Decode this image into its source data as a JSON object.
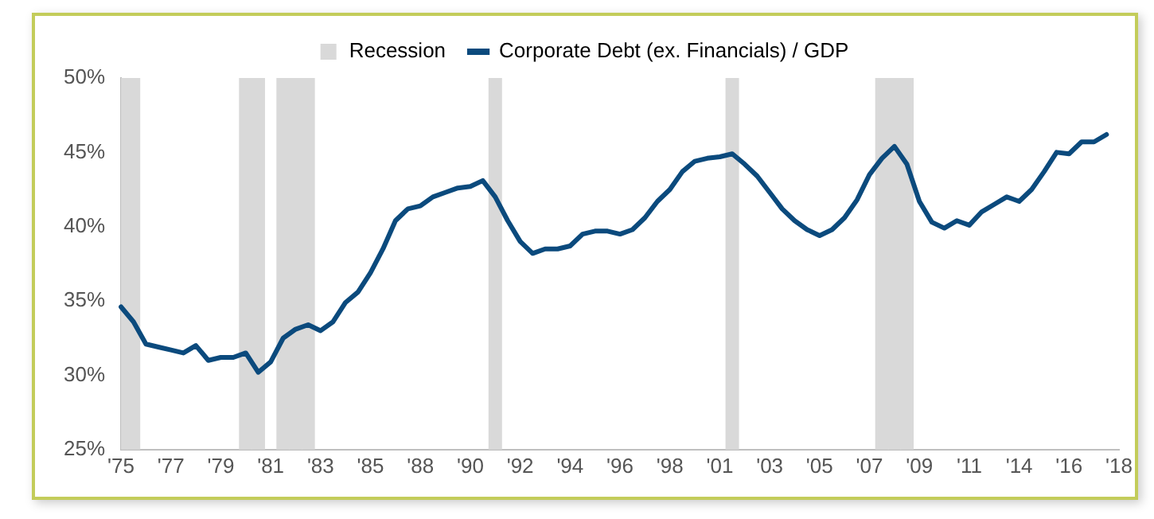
{
  "chart_data": {
    "type": "line",
    "legend": "top",
    "marker": "none",
    "line_style": "solid",
    "grid": false,
    "categories": [
      "'75",
      null,
      null,
      null,
      "'77",
      null,
      null,
      null,
      "'79",
      null,
      null,
      null,
      "'81",
      null,
      null,
      null,
      "'83",
      null,
      null,
      null,
      "'85",
      null,
      null,
      null,
      "'88",
      null,
      null,
      null,
      "'90",
      null,
      null,
      null,
      "'92",
      null,
      null,
      null,
      "'94",
      null,
      null,
      null,
      "'96",
      null,
      null,
      null,
      "'98",
      null,
      null,
      null,
      "'01",
      null,
      null,
      null,
      "'03",
      null,
      null,
      null,
      "'05",
      null,
      null,
      null,
      "'07",
      null,
      null,
      null,
      "'09",
      null,
      null,
      null,
      "'11",
      null,
      null,
      null,
      "'14",
      null,
      null,
      null,
      "'16",
      null,
      null,
      null,
      "'18"
    ],
    "ylim": [
      25,
      50
    ],
    "yticks": [
      {
        "value": 25,
        "label": "25%"
      },
      {
        "value": 30,
        "label": "30%"
      },
      {
        "value": 35,
        "label": "35%"
      },
      {
        "value": 40,
        "label": "40%"
      },
      {
        "value": 45,
        "label": "45%"
      },
      {
        "value": 50,
        "label": "50%"
      }
    ],
    "series": [
      {
        "name": "Recession",
        "type": "bar",
        "color": "#d9d9d9",
        "values": [
          50,
          50,
          null,
          null,
          null,
          null,
          null,
          null,
          null,
          null,
          50,
          50,
          null,
          50,
          50,
          50,
          null,
          null,
          null,
          null,
          null,
          null,
          null,
          null,
          null,
          null,
          null,
          null,
          null,
          null,
          50,
          null,
          null,
          null,
          null,
          null,
          null,
          null,
          null,
          null,
          null,
          null,
          null,
          null,
          null,
          null,
          null,
          null,
          null,
          50,
          null,
          null,
          null,
          null,
          null,
          null,
          null,
          null,
          null,
          null,
          null,
          50,
          50,
          50,
          null,
          null,
          null,
          null,
          null,
          null,
          null,
          null,
          null,
          null,
          null,
          null,
          null,
          null,
          null,
          null,
          null
        ]
      },
      {
        "name": "Corporate Debt (ex. Financials) / GDP",
        "color": "#0b4a7d",
        "values": [
          34.6,
          33.6,
          32.1,
          31.9,
          31.7,
          31.5,
          32.0,
          31.0,
          31.2,
          31.2,
          31.5,
          30.2,
          30.9,
          32.5,
          33.1,
          33.4,
          33.0,
          33.6,
          34.9,
          35.6,
          36.9,
          38.5,
          40.4,
          41.2,
          41.4,
          42.0,
          42.3,
          42.6,
          42.7,
          43.1,
          42.0,
          40.4,
          39.0,
          38.2,
          38.5,
          38.5,
          38.7,
          39.5,
          39.7,
          39.7,
          39.5,
          39.8,
          40.6,
          41.7,
          42.5,
          43.7,
          44.4,
          44.6,
          44.7,
          44.9,
          44.2,
          43.4,
          42.3,
          41.2,
          40.4,
          39.8,
          39.4,
          39.8,
          40.6,
          41.8,
          43.5,
          44.6,
          45.4,
          44.2,
          41.7,
          40.3,
          39.9,
          40.4,
          40.1,
          41.0,
          41.5,
          42.0,
          41.7,
          42.5,
          43.7,
          45.0,
          44.9,
          45.7,
          45.7,
          46.2,
          null
        ]
      }
    ]
  }
}
